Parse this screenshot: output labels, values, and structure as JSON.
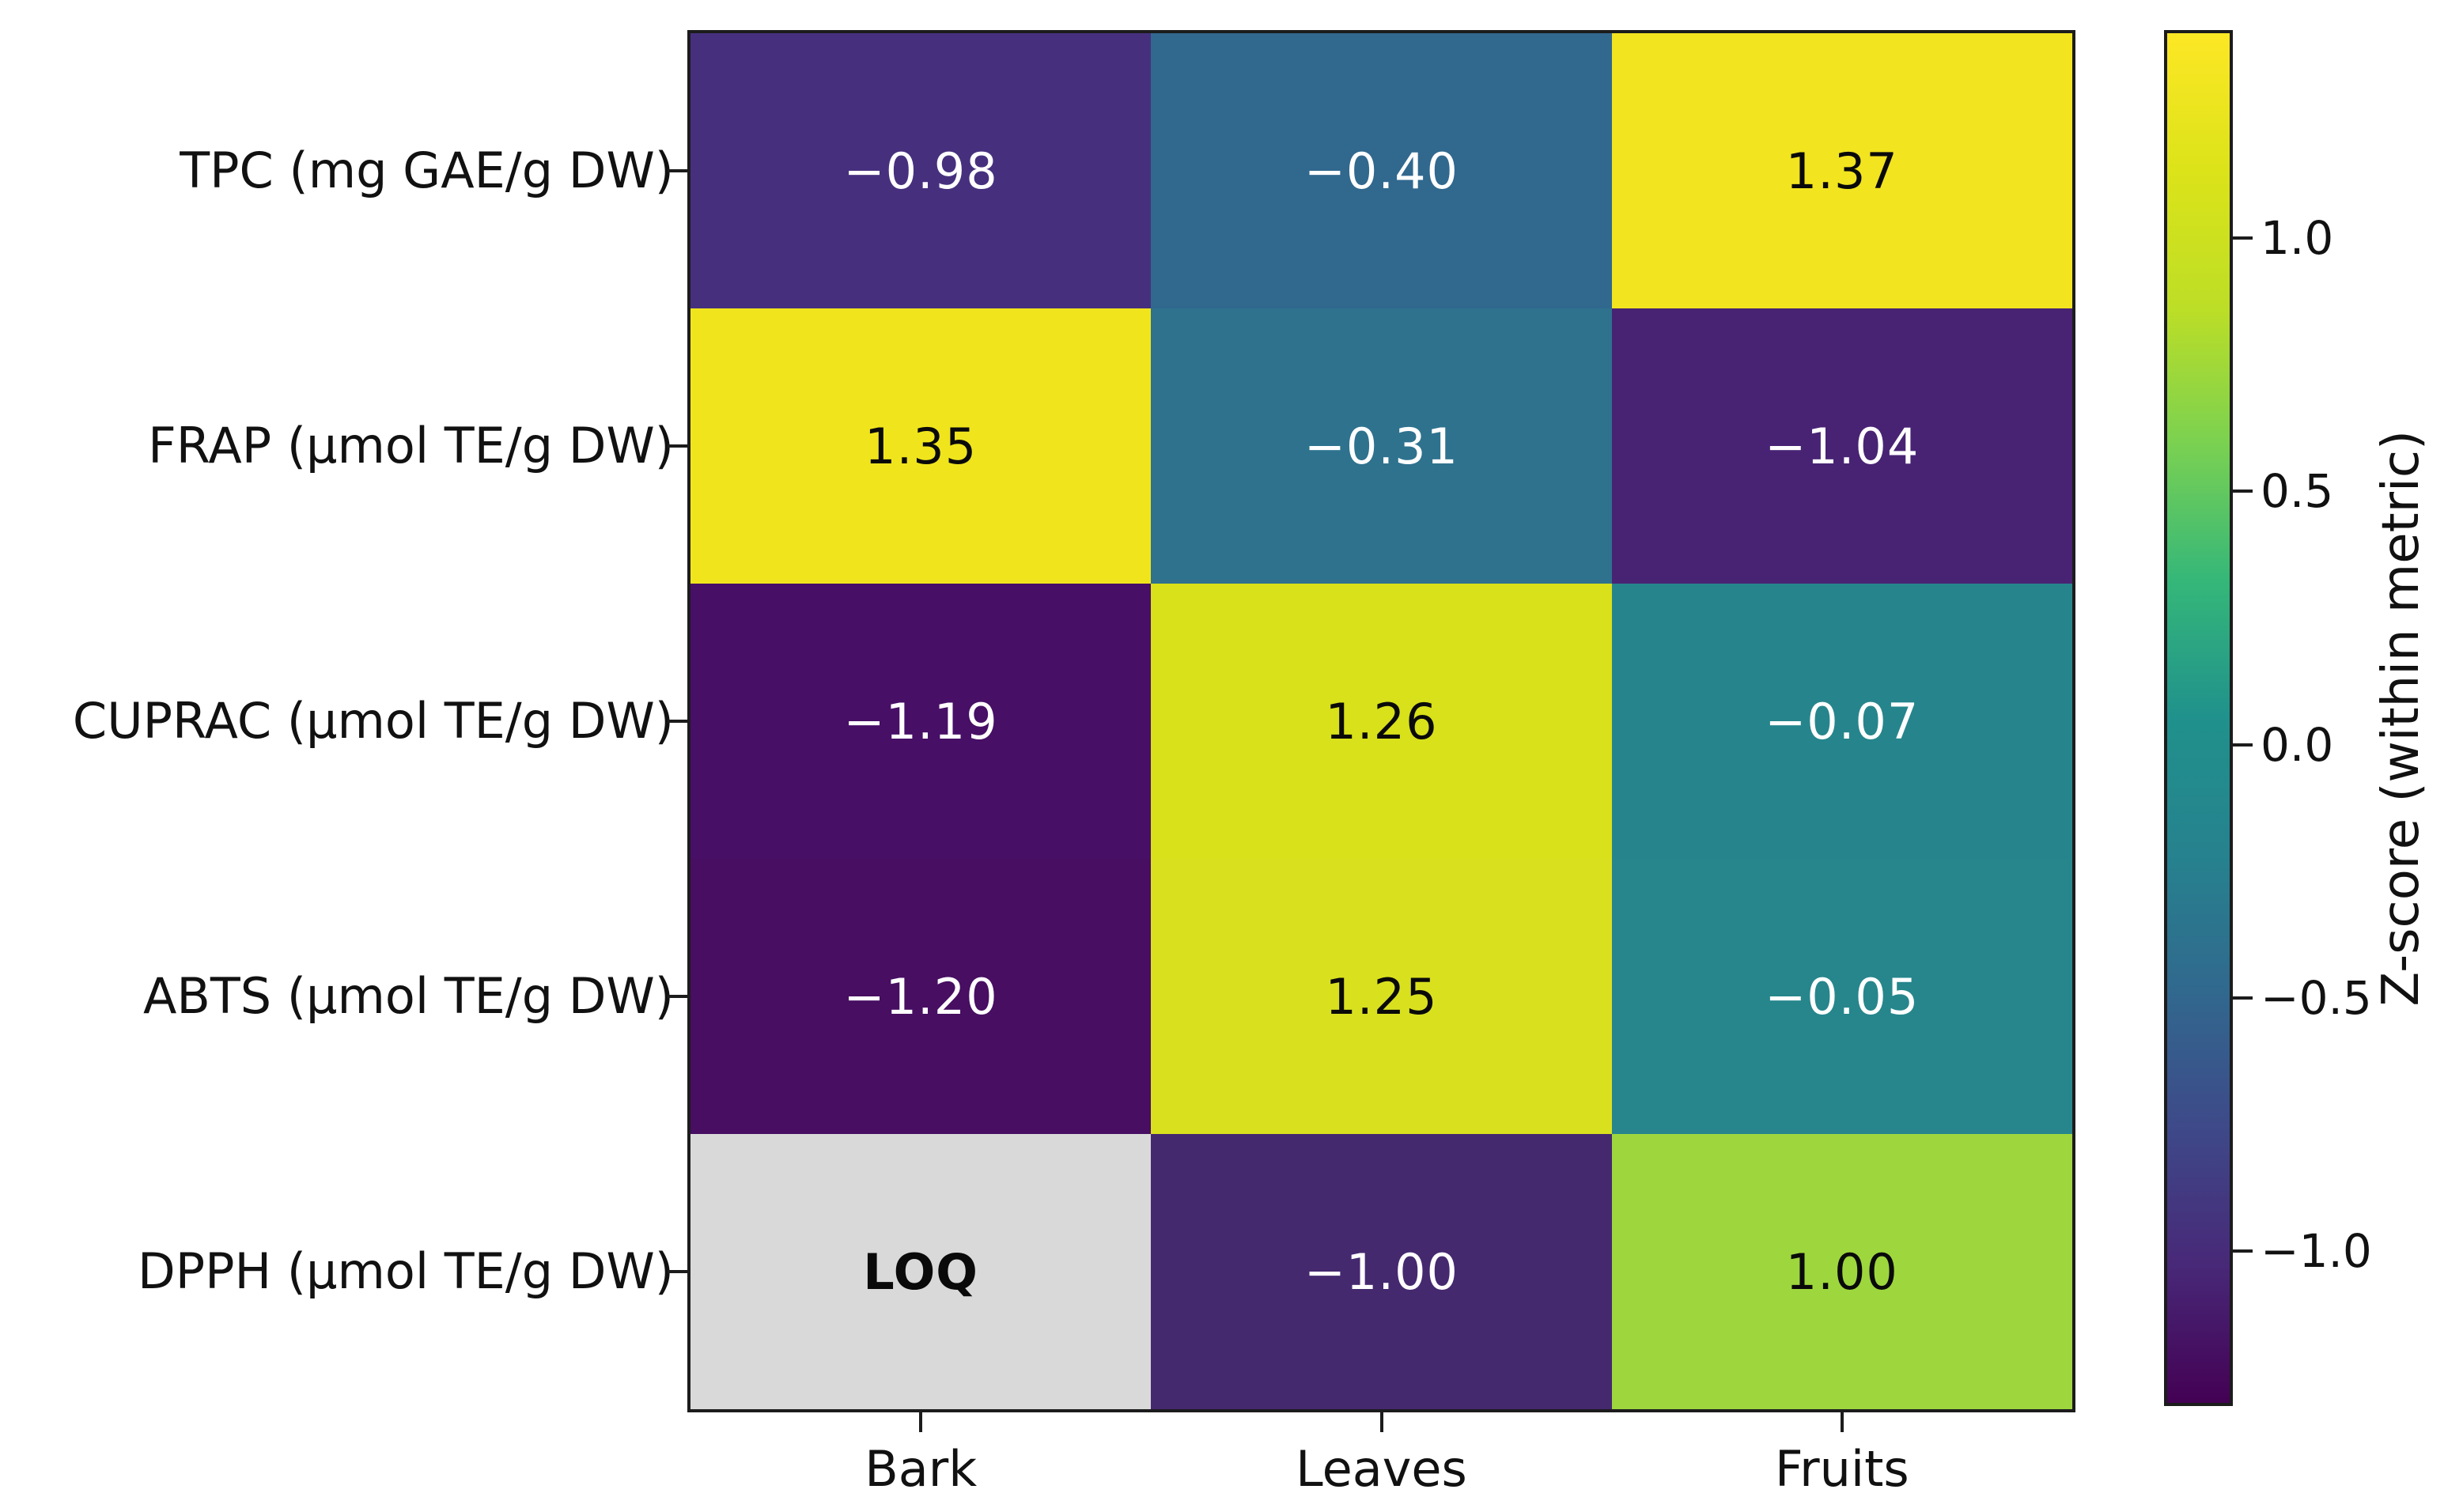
{
  "chart_data": {
    "type": "heatmap",
    "title": "",
    "colormap": "viridis",
    "columns": [
      "Bark",
      "Leaves",
      "Fruits"
    ],
    "rows": [
      "TPC (mg GAE/g DW)",
      "FRAP (μmol TE/g DW)",
      "CUPRAC (μmol TE/g DW)",
      "ABTS (μmol TE/g DW)",
      "DPPH (μmol TE/g DW)"
    ],
    "values": [
      [
        -0.98,
        -0.4,
        1.37
      ],
      [
        1.35,
        -0.31,
        -1.04
      ],
      [
        -1.19,
        1.26,
        -0.07
      ],
      [
        -1.2,
        1.25,
        -0.05
      ],
      [
        null,
        -1.0,
        1.0
      ]
    ],
    "masked_cell": {
      "row": "DPPH (μmol TE/g DW)",
      "column": "Bark",
      "label": "LOQ"
    },
    "cells": [
      {
        "label": "−0.98",
        "bg": "#46307e",
        "fg": "#ffffff",
        "bold": false
      },
      {
        "label": "−0.40",
        "bg": "#31688e",
        "fg": "#ffffff",
        "bold": false
      },
      {
        "label": "1.37",
        "bg": "#f2e41f",
        "fg": "#0a0a0a",
        "bold": false
      },
      {
        "label": "1.35",
        "bg": "#f0e51d",
        "fg": "#0a0a0a",
        "bold": false
      },
      {
        "label": "−0.31",
        "bg": "#2e728e",
        "fg": "#ffffff",
        "bold": false
      },
      {
        "label": "−1.04",
        "bg": "#482374",
        "fg": "#ffffff",
        "bold": false
      },
      {
        "label": "−1.19",
        "bg": "#470f66",
        "fg": "#ffffff",
        "bold": false
      },
      {
        "label": "1.26",
        "bg": "#d8e119",
        "fg": "#0a0a0a",
        "bold": false
      },
      {
        "label": "−0.07",
        "bg": "#26858c",
        "fg": "#ffffff",
        "bold": false
      },
      {
        "label": "−1.20",
        "bg": "#470e62",
        "fg": "#ffffff",
        "bold": false
      },
      {
        "label": "1.25",
        "bg": "#d9e11f",
        "fg": "#0a0a0a",
        "bold": false
      },
      {
        "label": "−0.05",
        "bg": "#26868c",
        "fg": "#ffffff",
        "bold": false
      },
      {
        "label": "LOQ",
        "bg": "#d9d9d9",
        "fg": "#0a0a0a",
        "bold": true
      },
      {
        "label": "−1.00",
        "bg": "#45296f",
        "fg": "#ffffff",
        "bold": false
      },
      {
        "label": "1.00",
        "bg": "#9dd73d",
        "fg": "#0a0a0a",
        "bold": false
      }
    ],
    "colorbar": {
      "label": "Z-score (within metric)",
      "ticks": [
        {
          "value": 1.0,
          "label": "1.0"
        },
        {
          "value": 0.5,
          "label": "0.5"
        },
        {
          "value": 0.0,
          "label": "0.0"
        },
        {
          "value": -0.5,
          "label": "−0.5"
        },
        {
          "value": -1.0,
          "label": "−1.0"
        }
      ],
      "range": [
        -1.3,
        1.405
      ],
      "gradient_top_color": "#fde725",
      "gradient_bottom_color": "#440154"
    },
    "layout": {
      "legend": "colorbar-right",
      "grid": false
    }
  }
}
